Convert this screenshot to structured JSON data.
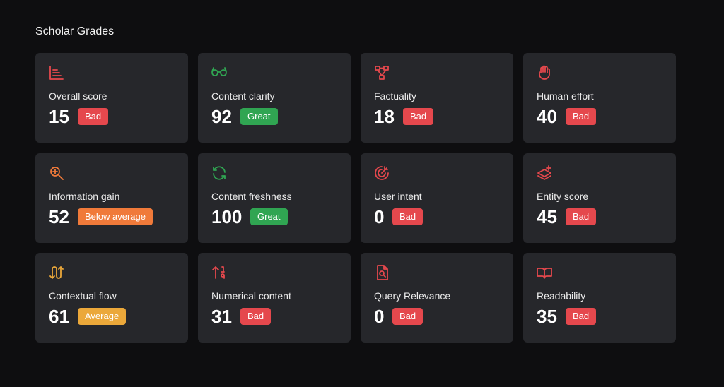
{
  "header": {
    "title": "Scholar Grades"
  },
  "cards": [
    {
      "label": "Overall score",
      "score": 15,
      "grade": "Bad",
      "color": "#e5484d"
    },
    {
      "label": "Content clarity",
      "score": 92,
      "grade": "Great",
      "color": "#30a552"
    },
    {
      "label": "Factuality",
      "score": 18,
      "grade": "Bad",
      "color": "#e5484d"
    },
    {
      "label": "Human effort",
      "score": 40,
      "grade": "Bad",
      "color": "#e5484d"
    },
    {
      "label": "Information gain",
      "score": 52,
      "grade": "Below average",
      "color": "#f07a3a"
    },
    {
      "label": "Content freshness",
      "score": 100,
      "grade": "Great",
      "color": "#30a552"
    },
    {
      "label": "User intent",
      "score": 0,
      "grade": "Bad",
      "color": "#e5484d"
    },
    {
      "label": "Entity score",
      "score": 45,
      "grade": "Bad",
      "color": "#e5484d"
    },
    {
      "label": "Contextual flow",
      "score": 61,
      "grade": "Average",
      "color": "#eba83a"
    },
    {
      "label": "Numerical content",
      "score": 31,
      "grade": "Bad",
      "color": "#e5484d"
    },
    {
      "label": "Query Relevance",
      "score": 0,
      "grade": "Bad",
      "color": "#e5484d"
    },
    {
      "label": "Readability",
      "score": 35,
      "grade": "Bad",
      "color": "#e5484d"
    }
  ]
}
